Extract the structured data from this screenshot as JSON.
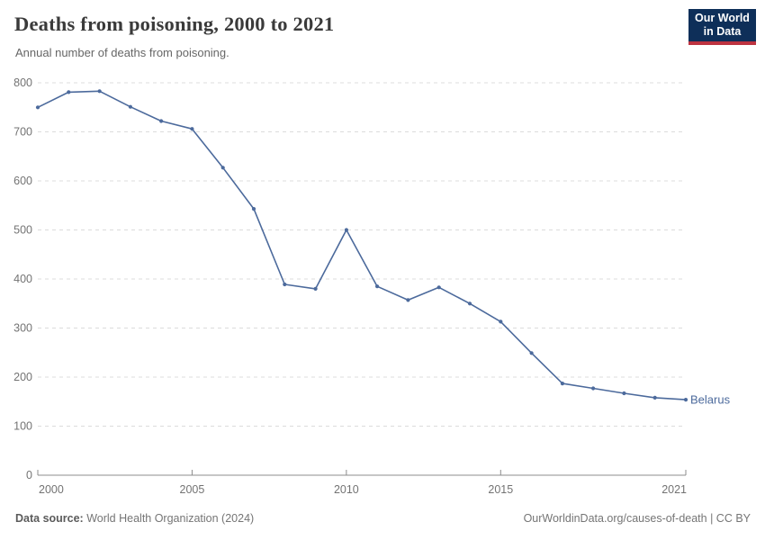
{
  "header": {
    "title": "Deaths from poisoning, 2000 to 2021",
    "subtitle": "Annual number of deaths from poisoning.",
    "logo": {
      "line1": "Our World",
      "line2": "in Data"
    }
  },
  "chart_data": {
    "type": "line",
    "title": "Deaths from poisoning, 2000 to 2021",
    "subtitle": "Annual number of deaths from poisoning.",
    "x": [
      2000,
      2001,
      2002,
      2003,
      2004,
      2005,
      2006,
      2007,
      2008,
      2009,
      2010,
      2011,
      2012,
      2013,
      2014,
      2015,
      2016,
      2017,
      2018,
      2019,
      2020,
      2021
    ],
    "series": [
      {
        "name": "Belarus",
        "color": "#4c6a9c",
        "values": [
          750,
          781,
          783,
          751,
          722,
          706,
          627,
          543,
          389,
          380,
          500,
          385,
          357,
          383,
          350,
          313,
          249,
          187,
          177,
          167,
          158,
          154
        ]
      }
    ],
    "xlabel": "",
    "ylabel": "",
    "xlim": [
      2000,
      2021
    ],
    "ylim": [
      0,
      800
    ],
    "x_ticks": [
      2000,
      2005,
      2010,
      2015,
      2021
    ],
    "y_ticks": [
      0,
      100,
      200,
      300,
      400,
      500,
      600,
      700,
      800
    ],
    "grid": "horizontal-dashed",
    "legend_position": "end-of-line-label",
    "end_label": "Belarus"
  },
  "footer": {
    "datasource_label": "Data source:",
    "datasource_value": "World Health Organization (2024)",
    "attribution": "OurWorldinData.org/causes-of-death | CC BY"
  },
  "colors": {
    "line": "#4c6a9c",
    "gridline": "#dcdcdc",
    "axis": "#8c8c8c",
    "tick_text": "#737373",
    "logo_bg": "#0e2f59",
    "logo_accent": "#bd3340"
  }
}
